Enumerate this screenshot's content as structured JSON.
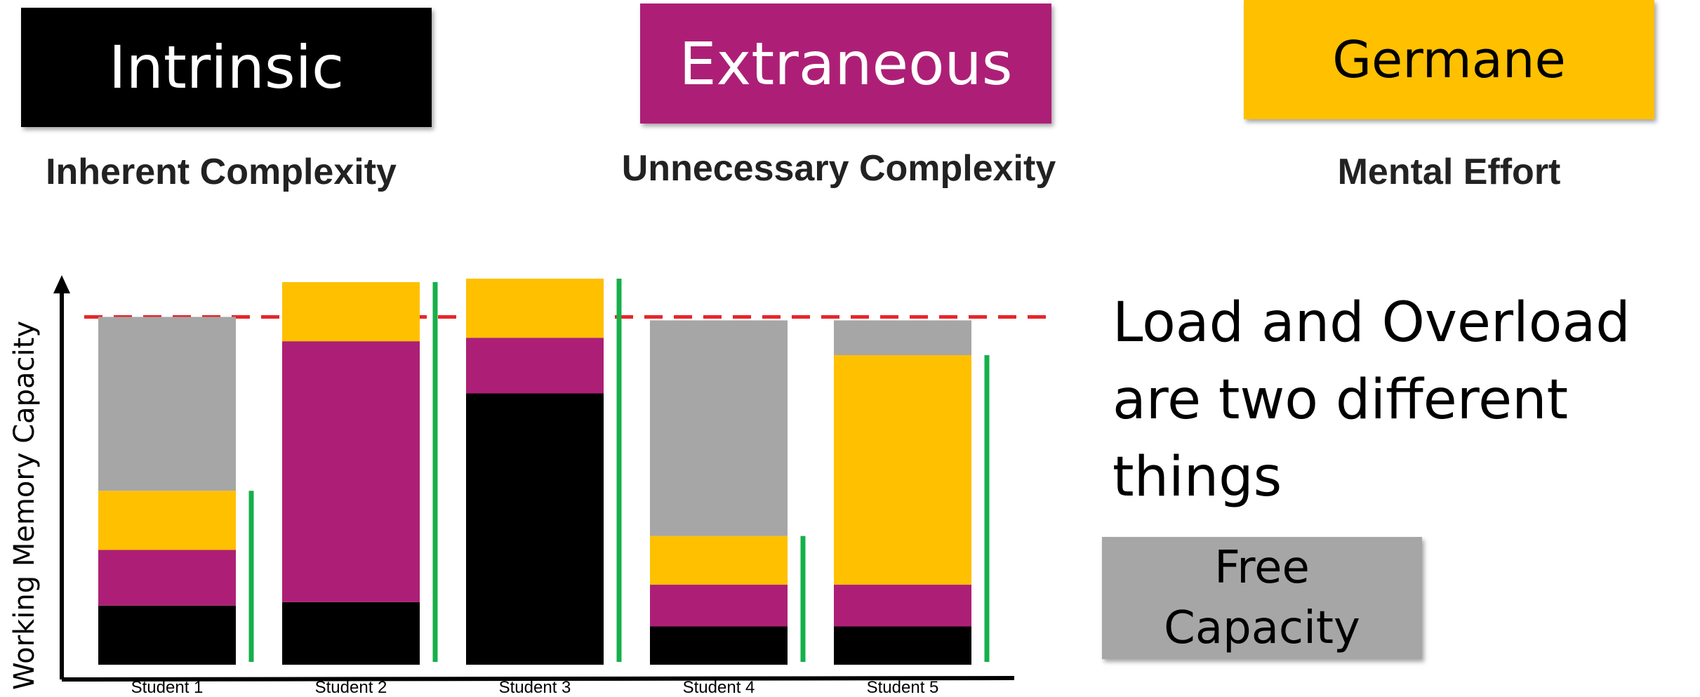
{
  "legend": {
    "intrinsic": {
      "label": "Intrinsic",
      "caption": "Inherent Complexity",
      "color": "#000000",
      "text_color": "#ffffff"
    },
    "extraneous": {
      "label": "Extraneous",
      "caption": "Unnecessary Complexity",
      "color": "#AD1F76",
      "text_color": "#ffffff"
    },
    "germane": {
      "label": "Germane",
      "caption": "Mental Effort",
      "color": "#FFC000",
      "text_color": "#000000"
    },
    "free": {
      "label_line1": "Free",
      "label_line2": "Capacity",
      "color": "#A6A6A6",
      "text_color": "#000000"
    }
  },
  "headline": "Load and Overload are two different things",
  "chart_data": {
    "type": "bar",
    "stacked": true,
    "ylabel": "Working Memory Capacity",
    "xlabel": "",
    "categories": [
      "Student 1",
      "Student 2",
      "Student 3",
      "Student 4",
      "Student 5"
    ],
    "capacity_line": 100,
    "capacity_line_color": "#E8262A",
    "load_indicator_color": "#16B04A",
    "ylim": [
      0,
      112
    ],
    "series": [
      {
        "name": "Intrinsic",
        "color": "#000000",
        "values": [
          17,
          18,
          78,
          11,
          11
        ]
      },
      {
        "name": "Extraneous",
        "color": "#AD1F76",
        "values": [
          16,
          75,
          16,
          12,
          12
        ]
      },
      {
        "name": "Germane",
        "color": "#FFC000",
        "values": [
          17,
          17,
          17,
          14,
          66
        ]
      },
      {
        "name": "Free Capacity",
        "color": "#A6A6A6",
        "values": [
          50,
          0,
          0,
          62,
          10
        ]
      }
    ]
  }
}
